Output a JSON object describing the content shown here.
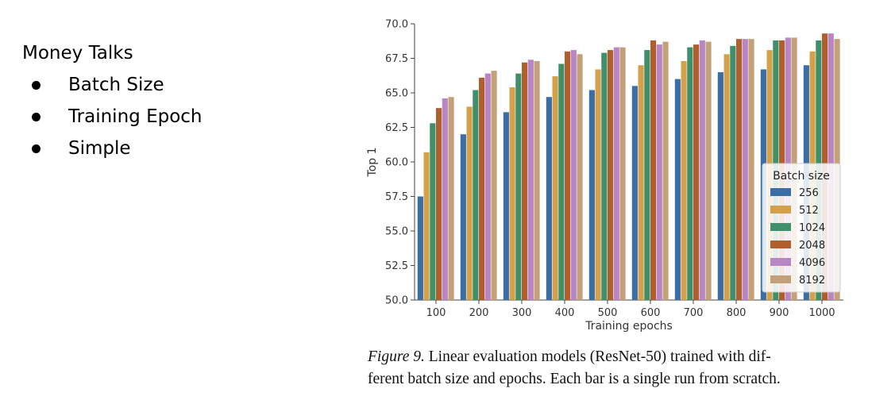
{
  "slide": {
    "heading": "Money Talks",
    "bullets": [
      "Batch Size",
      "Training Epoch",
      "Simple"
    ]
  },
  "caption": {
    "figure_label": "Figure 9.",
    "line1": "Linear evaluation models (ResNet-50) trained with dif-",
    "line2": "ferent batch size and epochs. Each bar is a single run from scratch."
  },
  "chart_data": {
    "type": "bar",
    "title": "",
    "xlabel": "Training epochs",
    "ylabel": "Top 1",
    "ylim": [
      50.0,
      70.0
    ],
    "yticks": [
      "50.0",
      "52.5",
      "55.0",
      "57.5",
      "60.0",
      "62.5",
      "65.0",
      "67.5",
      "70.0"
    ],
    "grid": false,
    "legend_title": "Batch size",
    "legend_position": "bottom-right",
    "categories": [
      "100",
      "200",
      "300",
      "400",
      "500",
      "600",
      "700",
      "800",
      "900",
      "1000"
    ],
    "series": [
      {
        "name": "256",
        "color": "#3a6ea5",
        "values": [
          57.5,
          62.0,
          63.6,
          64.7,
          65.2,
          65.5,
          66.0,
          66.5,
          66.7,
          67.0
        ]
      },
      {
        "name": "512",
        "color": "#d4a04a",
        "values": [
          60.7,
          64.0,
          65.4,
          66.2,
          66.7,
          67.0,
          67.3,
          67.8,
          68.1,
          68.0
        ]
      },
      {
        "name": "1024",
        "color": "#3f8f6a",
        "values": [
          62.8,
          65.2,
          66.4,
          67.1,
          67.9,
          68.1,
          68.3,
          68.4,
          68.8,
          68.8
        ]
      },
      {
        "name": "2048",
        "color": "#b05f2c",
        "values": [
          63.9,
          66.1,
          67.2,
          68.0,
          68.1,
          68.8,
          68.5,
          68.9,
          68.8,
          69.3
        ]
      },
      {
        "name": "4096",
        "color": "#b886c3",
        "values": [
          64.6,
          66.4,
          67.4,
          68.1,
          68.3,
          68.5,
          68.8,
          68.9,
          69.0,
          69.3
        ]
      },
      {
        "name": "8192",
        "color": "#c4a07a",
        "values": [
          64.7,
          66.6,
          67.3,
          67.8,
          68.3,
          68.7,
          68.7,
          68.9,
          69.0,
          68.9
        ]
      }
    ]
  }
}
